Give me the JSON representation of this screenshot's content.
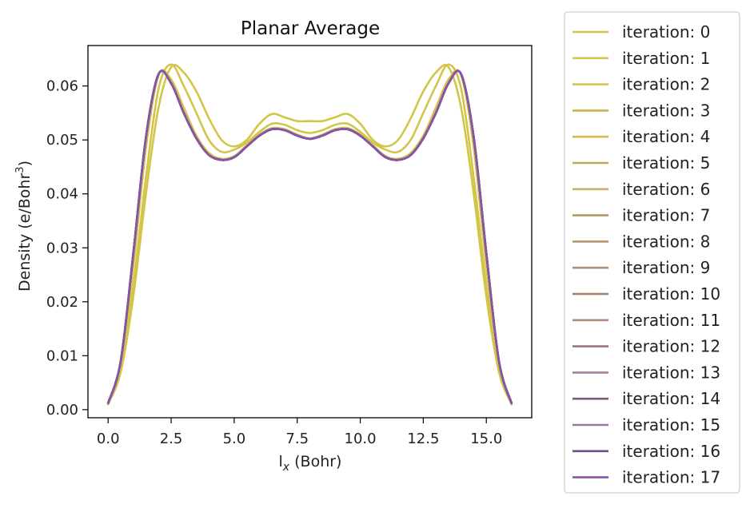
{
  "chart_data": {
    "type": "line",
    "title": "Planar Average",
    "xlabel": "l",
    "xlabel_sub": "x",
    "xlabel_unit": " (Bohr)",
    "ylabel": "Density (e/Bohr",
    "ylabel_sup": "3",
    "ylabel_close": ")",
    "xlim": [
      -0.8,
      16.8
    ],
    "ylim": [
      -0.0015,
      0.0675
    ],
    "xticks": [
      0.0,
      2.5,
      5.0,
      7.5,
      10.0,
      12.5,
      15.0
    ],
    "xtick_labels": [
      "0.0",
      "2.5",
      "5.0",
      "7.5",
      "10.0",
      "12.5",
      "15.0"
    ],
    "yticks": [
      0.0,
      0.01,
      0.02,
      0.03,
      0.04,
      0.05,
      0.06
    ],
    "ytick_labels": [
      "0.00",
      "0.01",
      "0.02",
      "0.03",
      "0.04",
      "0.05",
      "0.06"
    ],
    "grid": false,
    "legend_position": "outside-right",
    "x": [
      0.0,
      0.5,
      1.0,
      1.5,
      2.0,
      2.5,
      3.0,
      3.5,
      4.0,
      4.5,
      5.0,
      5.5,
      6.0,
      6.5,
      7.0,
      7.5,
      8.0,
      8.5,
      9.0,
      9.5,
      10.0,
      10.5,
      11.0,
      11.5,
      12.0,
      12.5,
      13.0,
      13.5,
      14.0,
      14.5,
      15.0,
      15.5,
      16.0
    ],
    "series": [
      {
        "name": "iteration: 0",
        "color": "#d2c646",
        "values": [
          0.001,
          0.007,
          0.021,
          0.04,
          0.056,
          0.0635,
          0.0625,
          0.059,
          0.054,
          0.05,
          0.0488,
          0.05,
          0.053,
          0.0548,
          0.0542,
          0.0535,
          0.0535,
          0.0535,
          0.0542,
          0.0548,
          0.053,
          0.05,
          0.0488,
          0.05,
          0.054,
          0.059,
          0.0625,
          0.0635,
          0.056,
          0.04,
          0.021,
          0.007,
          0.001
        ]
      },
      {
        "name": "iteration: 1",
        "color": "#d3c44a",
        "values": [
          0.001,
          0.0075,
          0.023,
          0.043,
          0.0595,
          0.064,
          0.06,
          0.055,
          0.05,
          0.0478,
          0.0482,
          0.0495,
          0.0515,
          0.053,
          0.0528,
          0.0518,
          0.0513,
          0.0518,
          0.0528,
          0.053,
          0.0515,
          0.0495,
          0.0482,
          0.0478,
          0.05,
          0.055,
          0.06,
          0.064,
          0.0595,
          0.043,
          0.023,
          0.0075,
          0.001
        ]
      },
      {
        "name": "iteration: 2",
        "color": "#d5c24f",
        "values": [
          0.0012,
          0.0085,
          0.0265,
          0.0485,
          0.062,
          0.0612,
          0.056,
          0.0508,
          0.0476,
          0.0465,
          0.047,
          0.049,
          0.051,
          0.0522,
          0.052,
          0.051,
          0.0503,
          0.051,
          0.052,
          0.0522,
          0.051,
          0.049,
          0.047,
          0.0465,
          0.0476,
          0.0508,
          0.056,
          0.0612,
          0.062,
          0.0485,
          0.0265,
          0.0085,
          0.0012
        ]
      },
      {
        "name": "iteration: 3",
        "color": "#c9b252",
        "values": [
          0.0012,
          0.009,
          0.029,
          0.0505,
          0.0622,
          0.0605,
          0.055,
          0.0503,
          0.0472,
          0.0463,
          0.0468,
          0.0488,
          0.0508,
          0.052,
          0.0518,
          0.0508,
          0.0502,
          0.0508,
          0.0518,
          0.052,
          0.0508,
          0.0488,
          0.0468,
          0.0463,
          0.0472,
          0.0503,
          0.055,
          0.0605,
          0.0622,
          0.0505,
          0.029,
          0.009,
          0.0012
        ]
      },
      {
        "name": "iteration: 4",
        "color": "#d4b657",
        "values": [
          0.0012,
          0.009,
          0.029,
          0.0505,
          0.0622,
          0.0605,
          0.055,
          0.0503,
          0.0472,
          0.0463,
          0.0468,
          0.0488,
          0.0508,
          0.052,
          0.0518,
          0.0508,
          0.0502,
          0.0508,
          0.0518,
          0.052,
          0.0508,
          0.0488,
          0.0468,
          0.0463,
          0.0472,
          0.0503,
          0.055,
          0.0605,
          0.0622,
          0.0505,
          0.029,
          0.009,
          0.0012
        ]
      },
      {
        "name": "iteration: 5",
        "color": "#c2a95a",
        "values": [
          0.0012,
          0.009,
          0.029,
          0.0505,
          0.0622,
          0.0605,
          0.055,
          0.0503,
          0.0472,
          0.0463,
          0.0468,
          0.0488,
          0.0508,
          0.052,
          0.0518,
          0.0508,
          0.0502,
          0.0508,
          0.0518,
          0.052,
          0.0508,
          0.0488,
          0.0468,
          0.0463,
          0.0472,
          0.0503,
          0.055,
          0.0605,
          0.0622,
          0.0505,
          0.029,
          0.009,
          0.0012
        ]
      },
      {
        "name": "iteration: 6",
        "color": "#c9ac6a",
        "values": [
          0.0012,
          0.009,
          0.029,
          0.0505,
          0.0622,
          0.0605,
          0.055,
          0.0503,
          0.0472,
          0.0463,
          0.0468,
          0.0488,
          0.0508,
          0.052,
          0.0518,
          0.0508,
          0.0502,
          0.0508,
          0.0518,
          0.052,
          0.0508,
          0.0488,
          0.0468,
          0.0463,
          0.0472,
          0.0503,
          0.055,
          0.0605,
          0.0622,
          0.0505,
          0.029,
          0.009,
          0.0012
        ]
      },
      {
        "name": "iteration: 7",
        "color": "#b39862",
        "values": [
          0.0012,
          0.009,
          0.029,
          0.0505,
          0.0622,
          0.0605,
          0.055,
          0.0503,
          0.0472,
          0.0463,
          0.0468,
          0.0488,
          0.0508,
          0.052,
          0.0518,
          0.0508,
          0.0502,
          0.0508,
          0.0518,
          0.052,
          0.0508,
          0.0488,
          0.0468,
          0.0463,
          0.0472,
          0.0503,
          0.055,
          0.0605,
          0.0622,
          0.0505,
          0.029,
          0.009,
          0.0012
        ]
      },
      {
        "name": "iteration: 8",
        "color": "#b9966e",
        "values": [
          0.0012,
          0.009,
          0.029,
          0.0505,
          0.0622,
          0.0605,
          0.055,
          0.0503,
          0.0472,
          0.0463,
          0.0468,
          0.0488,
          0.0508,
          0.052,
          0.0518,
          0.0508,
          0.0502,
          0.0508,
          0.0518,
          0.052,
          0.0508,
          0.0488,
          0.0468,
          0.0463,
          0.0472,
          0.0503,
          0.055,
          0.0605,
          0.0622,
          0.0505,
          0.029,
          0.009,
          0.0012
        ]
      },
      {
        "name": "iteration: 9",
        "color": "#ae9179",
        "values": [
          0.0012,
          0.009,
          0.029,
          0.0505,
          0.0622,
          0.0605,
          0.055,
          0.0503,
          0.0472,
          0.0463,
          0.0468,
          0.0488,
          0.0508,
          0.052,
          0.0518,
          0.0508,
          0.0502,
          0.0508,
          0.0518,
          0.052,
          0.0508,
          0.0488,
          0.0468,
          0.0463,
          0.0472,
          0.0503,
          0.055,
          0.0605,
          0.0622,
          0.0505,
          0.029,
          0.009,
          0.0012
        ]
      },
      {
        "name": "iteration: 10",
        "color": "#a3806d",
        "values": [
          0.0012,
          0.009,
          0.029,
          0.0505,
          0.0622,
          0.0605,
          0.055,
          0.0503,
          0.0472,
          0.0463,
          0.0468,
          0.0488,
          0.0508,
          0.052,
          0.0518,
          0.0508,
          0.0502,
          0.0508,
          0.0518,
          0.052,
          0.0508,
          0.0488,
          0.0468,
          0.0463,
          0.0472,
          0.0503,
          0.055,
          0.0605,
          0.0622,
          0.0505,
          0.029,
          0.009,
          0.0012
        ]
      },
      {
        "name": "iteration: 11",
        "color": "#b08a80",
        "values": [
          0.0012,
          0.009,
          0.029,
          0.0505,
          0.0622,
          0.0605,
          0.055,
          0.0503,
          0.0472,
          0.0463,
          0.0468,
          0.0488,
          0.0508,
          0.052,
          0.0518,
          0.0508,
          0.0502,
          0.0508,
          0.0518,
          0.052,
          0.0508,
          0.0488,
          0.0468,
          0.0463,
          0.0472,
          0.0503,
          0.055,
          0.0605,
          0.0622,
          0.0505,
          0.029,
          0.009,
          0.0012
        ]
      },
      {
        "name": "iteration: 12",
        "color": "#9a7679",
        "values": [
          0.0012,
          0.009,
          0.029,
          0.0505,
          0.0622,
          0.0605,
          0.055,
          0.0503,
          0.0472,
          0.0463,
          0.0468,
          0.0488,
          0.0508,
          0.052,
          0.0518,
          0.0508,
          0.0502,
          0.0508,
          0.0518,
          0.052,
          0.0508,
          0.0488,
          0.0468,
          0.0463,
          0.0472,
          0.0503,
          0.055,
          0.0605,
          0.0622,
          0.0505,
          0.029,
          0.009,
          0.0012
        ]
      },
      {
        "name": "iteration: 13",
        "color": "#a6819c",
        "values": [
          0.0012,
          0.009,
          0.029,
          0.0505,
          0.0622,
          0.0605,
          0.055,
          0.0503,
          0.0472,
          0.0463,
          0.0468,
          0.0488,
          0.0508,
          0.052,
          0.0518,
          0.0508,
          0.0502,
          0.0508,
          0.0518,
          0.052,
          0.0508,
          0.0488,
          0.0468,
          0.0463,
          0.0472,
          0.0503,
          0.055,
          0.0605,
          0.0622,
          0.0505,
          0.029,
          0.009,
          0.0012
        ]
      },
      {
        "name": "iteration: 14",
        "color": "#7b5a7e",
        "values": [
          0.0012,
          0.009,
          0.029,
          0.0505,
          0.0622,
          0.0605,
          0.055,
          0.0503,
          0.0472,
          0.0463,
          0.0468,
          0.0488,
          0.0508,
          0.052,
          0.0518,
          0.0508,
          0.0502,
          0.0508,
          0.0518,
          0.052,
          0.0508,
          0.0488,
          0.0468,
          0.0463,
          0.0472,
          0.0503,
          0.055,
          0.0605,
          0.0622,
          0.0505,
          0.029,
          0.009,
          0.0012
        ]
      },
      {
        "name": "iteration: 15",
        "color": "#9a72aa",
        "values": [
          0.0012,
          0.009,
          0.029,
          0.0505,
          0.0622,
          0.0605,
          0.055,
          0.0503,
          0.0472,
          0.0463,
          0.0468,
          0.0488,
          0.0508,
          0.052,
          0.0518,
          0.0508,
          0.0502,
          0.0508,
          0.0518,
          0.052,
          0.0508,
          0.0488,
          0.0468,
          0.0463,
          0.0472,
          0.0503,
          0.055,
          0.0605,
          0.0622,
          0.0505,
          0.029,
          0.009,
          0.0012
        ]
      },
      {
        "name": "iteration: 16",
        "color": "#6f4a8c",
        "values": [
          0.0012,
          0.009,
          0.029,
          0.0505,
          0.0622,
          0.0605,
          0.055,
          0.0503,
          0.0472,
          0.0463,
          0.0468,
          0.0488,
          0.0508,
          0.052,
          0.0518,
          0.0508,
          0.0502,
          0.0508,
          0.0518,
          0.052,
          0.0508,
          0.0488,
          0.0468,
          0.0463,
          0.0472,
          0.0503,
          0.055,
          0.0605,
          0.0622,
          0.0505,
          0.029,
          0.009,
          0.0012
        ]
      },
      {
        "name": "iteration: 17",
        "color": "#8555a8",
        "values": [
          0.0012,
          0.009,
          0.029,
          0.0505,
          0.0622,
          0.0605,
          0.055,
          0.0503,
          0.0472,
          0.0463,
          0.0468,
          0.0488,
          0.0508,
          0.052,
          0.0518,
          0.0508,
          0.0502,
          0.0508,
          0.0518,
          0.052,
          0.0508,
          0.0488,
          0.0468,
          0.0463,
          0.0472,
          0.0503,
          0.055,
          0.0605,
          0.0622,
          0.0505,
          0.029,
          0.009,
          0.0012
        ]
      }
    ]
  }
}
